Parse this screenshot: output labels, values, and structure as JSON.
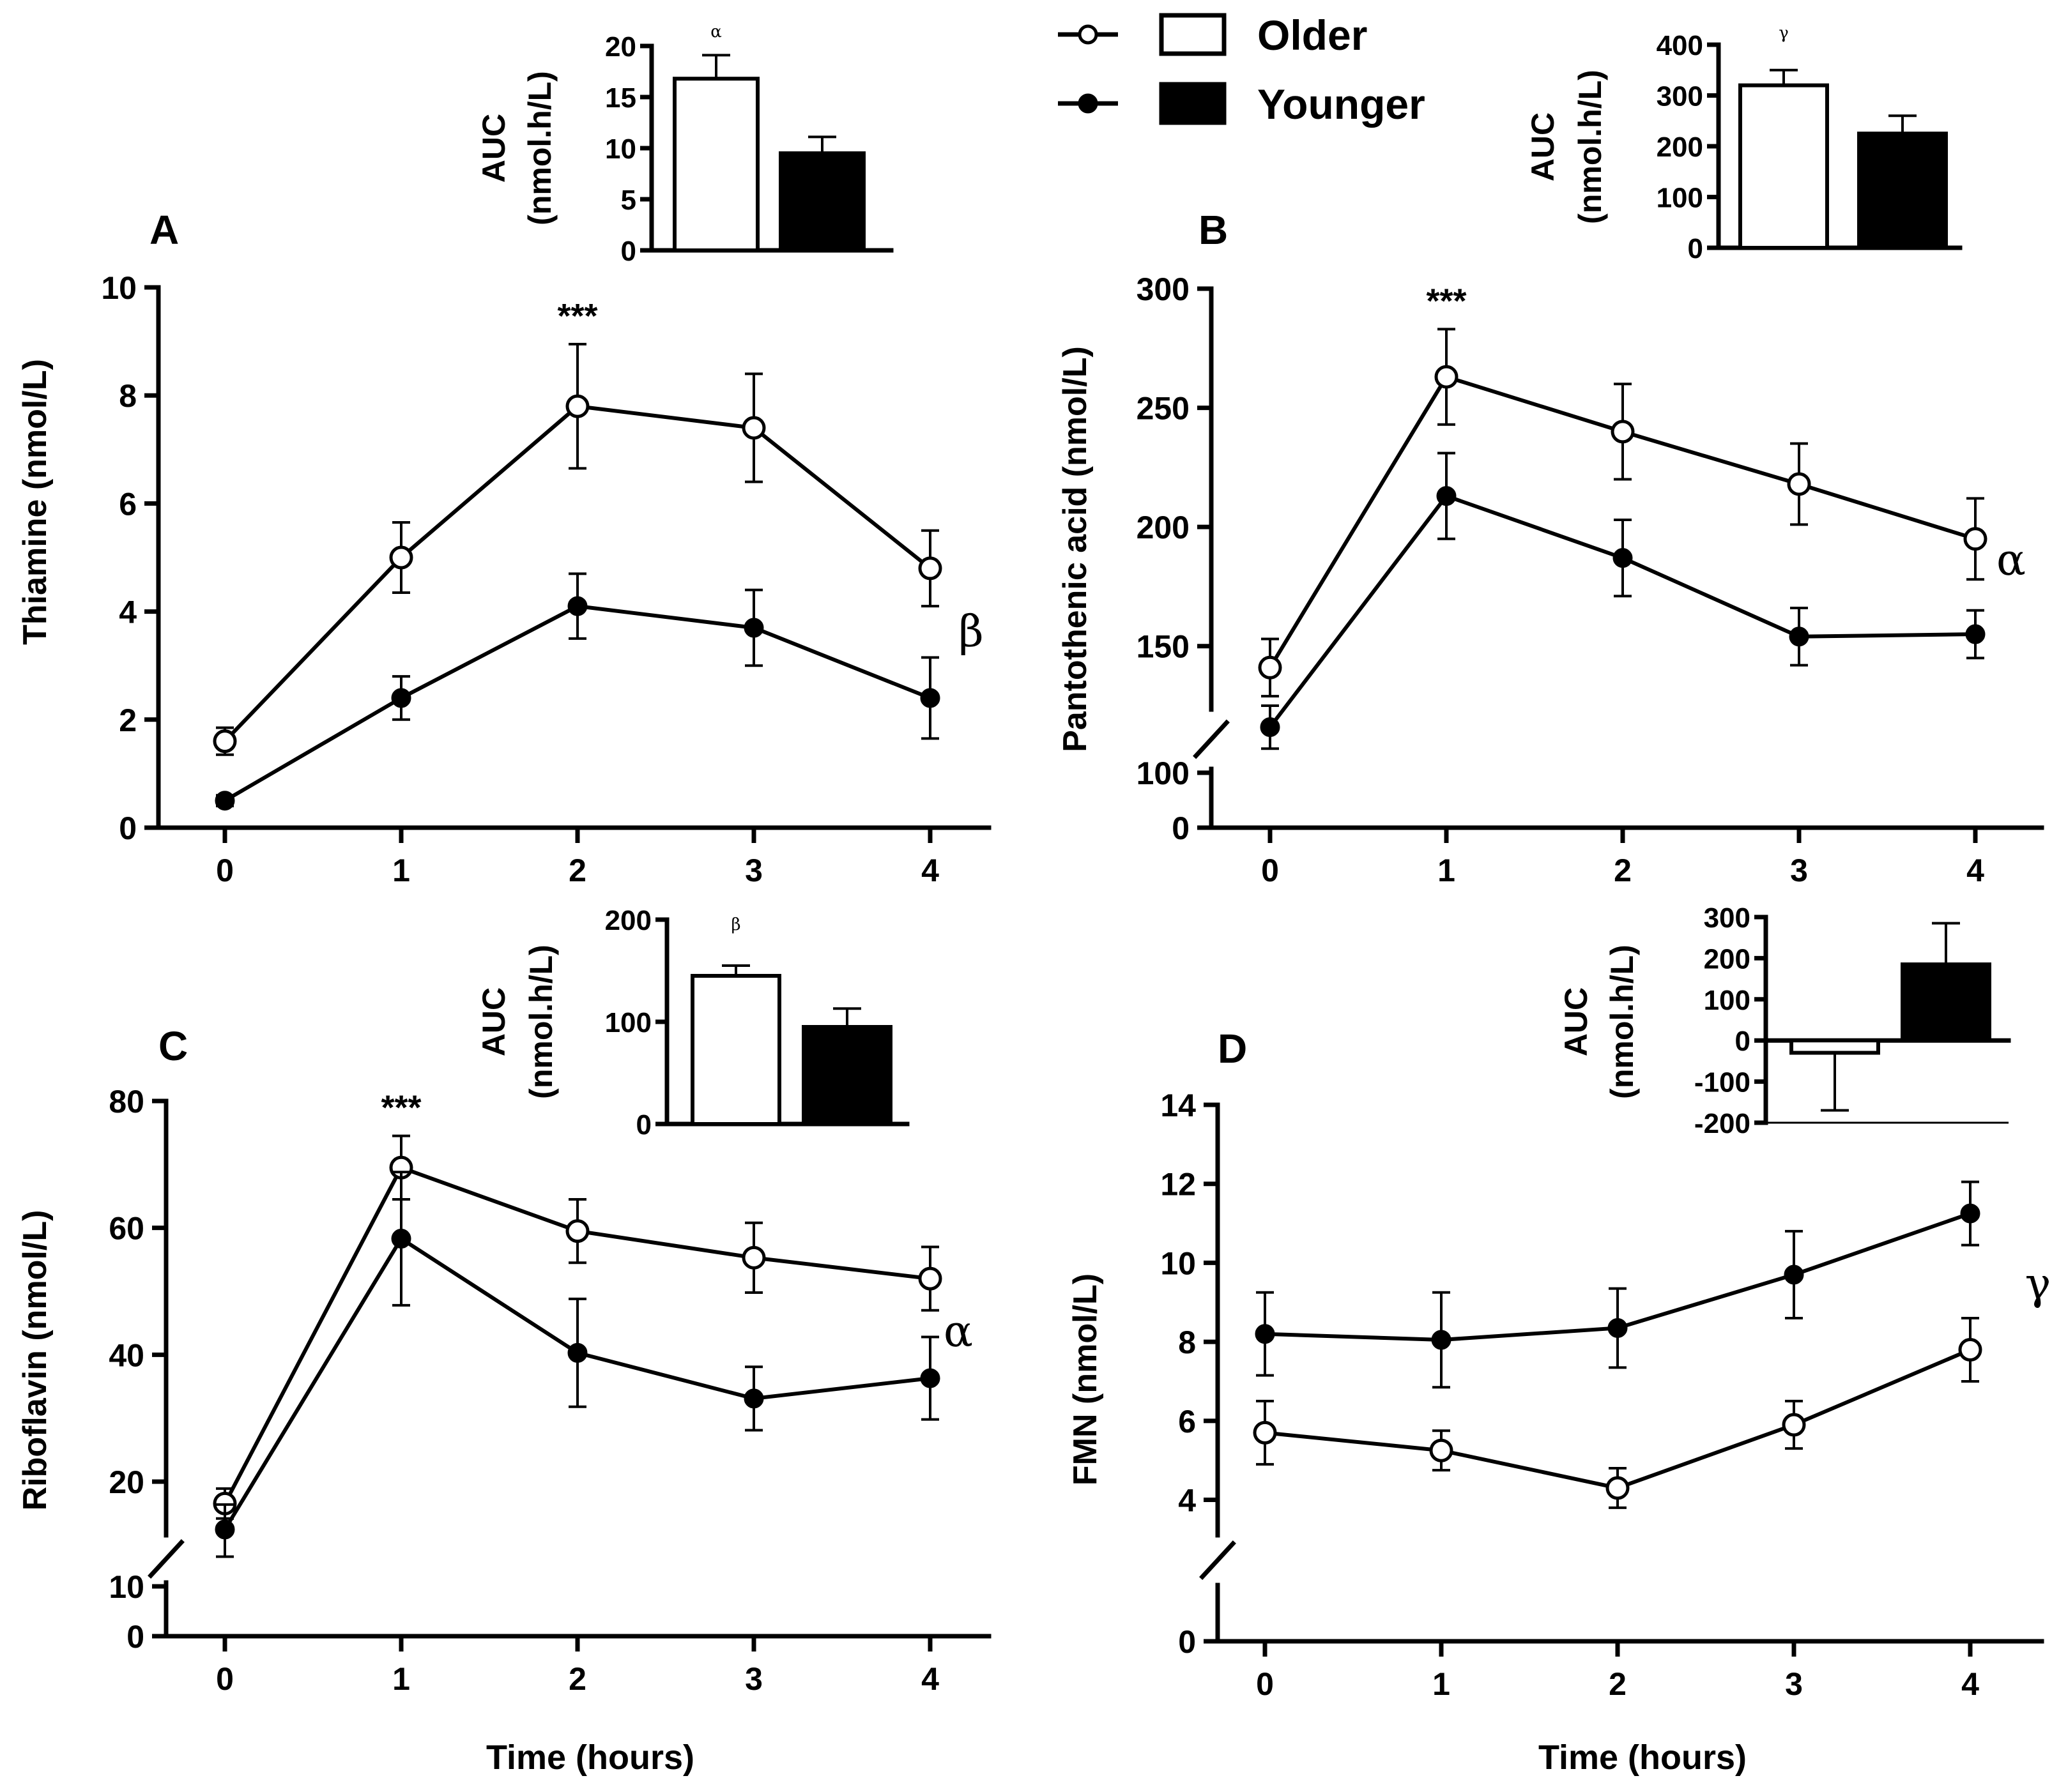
{
  "legend": {
    "items": [
      {
        "label": "Older",
        "marker": "open-circle",
        "fill": "#ffffff"
      },
      {
        "label": "Younger",
        "marker": "filled-circle",
        "fill": "#000000"
      }
    ]
  },
  "chart_data": [
    {
      "panel": "A",
      "type": "line",
      "ylabel": "Thiamine (nmol/L)",
      "xlabel": "",
      "x": [
        0,
        1,
        2,
        3,
        4
      ],
      "x_ticks": [
        "0",
        "1",
        "2",
        "3",
        "4"
      ],
      "y_ticks": [
        0,
        2,
        4,
        6,
        8,
        10
      ],
      "ylim": [
        0,
        10
      ],
      "axis_break": null,
      "series": [
        {
          "name": "Older",
          "values": [
            1.6,
            5.0,
            7.8,
            7.4,
            4.8
          ],
          "errors": [
            0.25,
            0.65,
            1.15,
            1.0,
            0.7
          ]
        },
        {
          "name": "Younger",
          "values": [
            0.5,
            2.4,
            4.1,
            3.7,
            2.4
          ],
          "errors": [
            0.1,
            0.4,
            0.6,
            0.7,
            0.75
          ]
        }
      ],
      "annotations": [
        {
          "text": "***",
          "x": 2
        }
      ],
      "group_symbol": "β",
      "inset": {
        "ylabel_line1": "AUC",
        "ylabel_line2": "(nmol.h/L)",
        "y_ticks": [
          0,
          5,
          10,
          15,
          20
        ],
        "ylim": [
          0,
          20
        ],
        "bars": [
          {
            "name": "Older",
            "value": 16.8,
            "error": 2.3,
            "fill": "#ffffff"
          },
          {
            "name": "Younger",
            "value": 9.5,
            "error": 1.6,
            "fill": "#000000"
          }
        ],
        "symbol": "α"
      }
    },
    {
      "panel": "B",
      "type": "line",
      "ylabel": "Pantothenic acid (nmol/L)",
      "xlabel": "",
      "x": [
        0,
        1,
        2,
        3,
        4
      ],
      "x_ticks": [
        "0",
        "1",
        "2",
        "3",
        "4"
      ],
      "y_ticks": [
        0,
        100,
        150,
        200,
        250,
        300
      ],
      "ylim": [
        0,
        300
      ],
      "axis_break": [
        100,
        125
      ],
      "series": [
        {
          "name": "Older",
          "values": [
            141,
            263,
            240,
            218,
            195
          ],
          "errors": [
            12,
            20,
            20,
            17,
            17
          ]
        },
        {
          "name": "Younger",
          "values": [
            117,
            213,
            187,
            154,
            155
          ],
          "errors": [
            8,
            18,
            16,
            12,
            10
          ]
        }
      ],
      "annotations": [
        {
          "text": "***",
          "x": 1
        }
      ],
      "group_symbol": "α",
      "inset": {
        "ylabel_line1": "AUC",
        "ylabel_line2": "(nmol.h/L)",
        "y_ticks": [
          0,
          100,
          200,
          300,
          400
        ],
        "ylim": [
          0,
          400
        ],
        "bars": [
          {
            "name": "Older",
            "value": 320,
            "error": 30,
            "fill": "#ffffff"
          },
          {
            "name": "Younger",
            "value": 225,
            "error": 35,
            "fill": "#000000"
          }
        ],
        "symbol": "γ"
      }
    },
    {
      "panel": "C",
      "type": "line",
      "ylabel": "Riboflavin (nmol/L)",
      "xlabel": "Time (hours)",
      "x": [
        0,
        1,
        2,
        3,
        4
      ],
      "x_ticks": [
        "0",
        "1",
        "2",
        "3",
        "4"
      ],
      "y_ticks": [
        0,
        10,
        20,
        40,
        60,
        80
      ],
      "ylim": [
        0,
        80
      ],
      "axis_break": [
        10,
        15
      ],
      "series": [
        {
          "name": "Older",
          "values": [
            17.8,
            69.5,
            59.5,
            55.3,
            52.0
          ],
          "errors": [
            1.5,
            5.0,
            5.0,
            5.5,
            5.0
          ]
        },
        {
          "name": "Younger",
          "values": [
            15.2,
            58.3,
            40.3,
            33.1,
            36.3
          ],
          "errors": [
            2.5,
            10.5,
            8.5,
            5.0,
            6.5
          ]
        }
      ],
      "annotations": [
        {
          "text": "***",
          "x": 1
        }
      ],
      "group_symbol": "α",
      "inset": {
        "ylabel_line1": "AUC",
        "ylabel_line2": "(nmol.h/L)",
        "y_ticks": [
          0,
          100,
          200
        ],
        "ylim": [
          0,
          200
        ],
        "bars": [
          {
            "name": "Older",
            "value": 145,
            "error": 10,
            "fill": "#ffffff"
          },
          {
            "name": "Younger",
            "value": 95,
            "error": 18,
            "fill": "#000000"
          }
        ],
        "symbol": "β"
      }
    },
    {
      "panel": "D",
      "type": "line",
      "ylabel": "FMN (nmol/L)",
      "xlabel": "Time (hours)",
      "x": [
        0,
        1,
        2,
        3,
        4
      ],
      "x_ticks": [
        "0",
        "1",
        "2",
        "3",
        "4"
      ],
      "y_ticks": [
        0,
        4,
        6,
        8,
        10,
        12,
        14
      ],
      "ylim": [
        0,
        14
      ],
      "axis_break": [
        2.3,
        3.2
      ],
      "series": [
        {
          "name": "Older",
          "values": [
            5.7,
            5.25,
            4.3,
            5.9,
            7.8
          ],
          "errors": [
            0.8,
            0.5,
            0.5,
            0.6,
            0.8
          ]
        },
        {
          "name": "Younger",
          "values": [
            8.2,
            8.05,
            8.35,
            9.7,
            11.25
          ],
          "errors": [
            1.05,
            1.2,
            1.0,
            1.1,
            0.8
          ]
        }
      ],
      "annotations": [],
      "group_symbol": "γ",
      "inset": {
        "ylabel_line1": "AUC",
        "ylabel_line2": "(nmol.h/L)",
        "y_ticks": [
          -200,
          -100,
          0,
          100,
          200,
          300
        ],
        "ylim": [
          -200,
          300
        ],
        "bars": [
          {
            "name": "Older",
            "value": -30,
            "error": 140,
            "fill": "#ffffff"
          },
          {
            "name": "Younger",
            "value": 185,
            "error": 100,
            "fill": "#000000"
          }
        ],
        "symbol": ""
      }
    }
  ]
}
